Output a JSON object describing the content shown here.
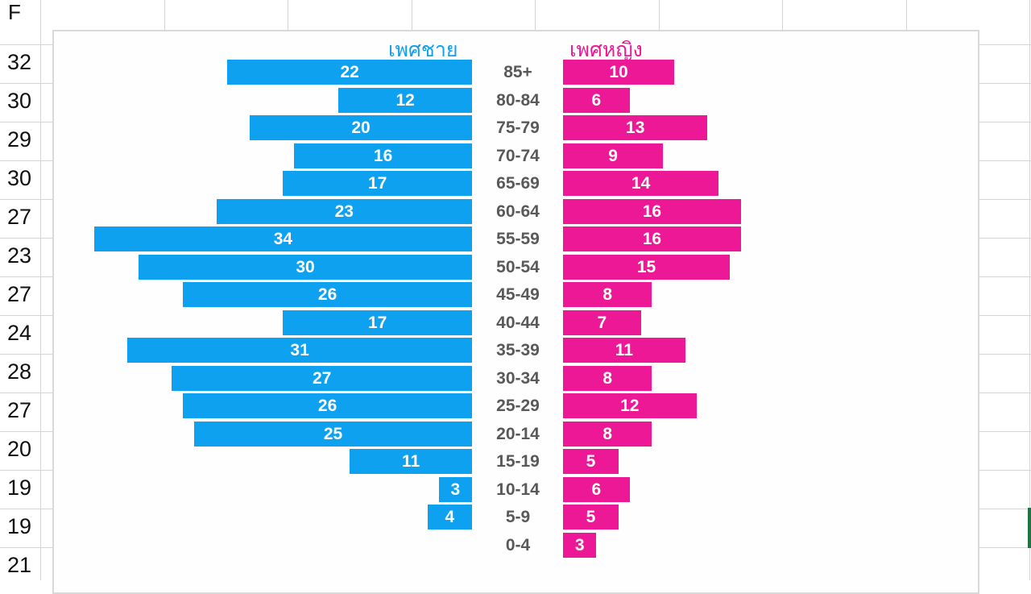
{
  "sheet": {
    "column_header": "F",
    "cell_values": [
      "32",
      "30",
      "29",
      "30",
      "27",
      "23",
      "27",
      "24",
      "28",
      "27",
      "20",
      "19",
      "19",
      "21"
    ]
  },
  "colors": {
    "male": "#0ea1f0",
    "female": "#ec1896",
    "age_text": "#595959"
  },
  "chart_data": {
    "type": "bar",
    "orientation": "horizontal-population-pyramid",
    "categories": [
      "85+",
      "80-84",
      "75-79",
      "70-74",
      "65-69",
      "60-64",
      "55-59",
      "50-54",
      "45-49",
      "40-44",
      "35-39",
      "30-34",
      "25-29",
      "20-14",
      "15-19",
      "10-14",
      "5-9",
      "0-4"
    ],
    "series": [
      {
        "name": "เพศชาย",
        "values": [
          22,
          12,
          20,
          16,
          17,
          23,
          34,
          30,
          26,
          17,
          31,
          27,
          26,
          25,
          11,
          3,
          4,
          0
        ]
      },
      {
        "name": "เพศหญิง",
        "values": [
          10,
          6,
          13,
          9,
          14,
          16,
          16,
          15,
          8,
          7,
          11,
          8,
          12,
          8,
          5,
          6,
          5,
          3
        ]
      }
    ],
    "xlim": [
      0,
      35
    ],
    "grid": false,
    "data_labels": true
  }
}
